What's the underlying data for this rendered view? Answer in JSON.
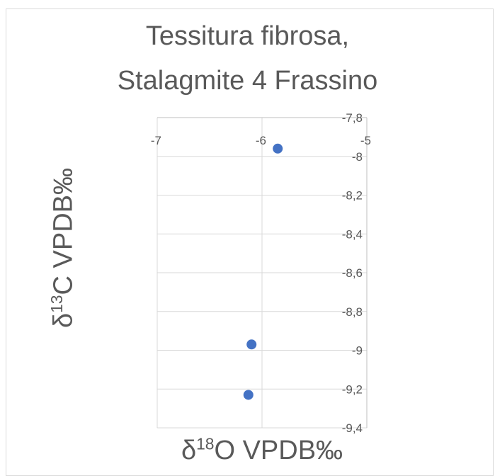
{
  "chart_data": {
    "type": "scatter",
    "title_line1": "Tessitura fibrosa,",
    "title_line2": "Stalagmite 4 Frassino",
    "xlabel_prefix": "δ",
    "xlabel_sup": "18",
    "xlabel_suffix": "O VPDB‰",
    "ylabel_prefix": "δ",
    "ylabel_sup": "13",
    "ylabel_suffix": "C VPDB‰",
    "xlim": [
      -7,
      -5
    ],
    "ylim": [
      -9.4,
      -7.8
    ],
    "x_ticks": [
      -7,
      -6,
      -5
    ],
    "x_tick_labels": [
      "-7",
      "-6",
      "-5"
    ],
    "y_ticks": [
      -7.8,
      -8,
      -8.2,
      -8.4,
      -8.6,
      -8.8,
      -9,
      -9.2,
      -9.4
    ],
    "y_tick_labels": [
      "-7,8",
      "-8",
      "-8,2",
      "-8,4",
      "-8,6",
      "-8,8",
      "-9",
      "-9,2",
      "-9,4"
    ],
    "grid": true,
    "marker_color": "#4472c4",
    "points": [
      {
        "x": -5.85,
        "y": -7.96
      },
      {
        "x": -6.1,
        "y": -8.97
      },
      {
        "x": -6.13,
        "y": -9.23
      }
    ]
  }
}
